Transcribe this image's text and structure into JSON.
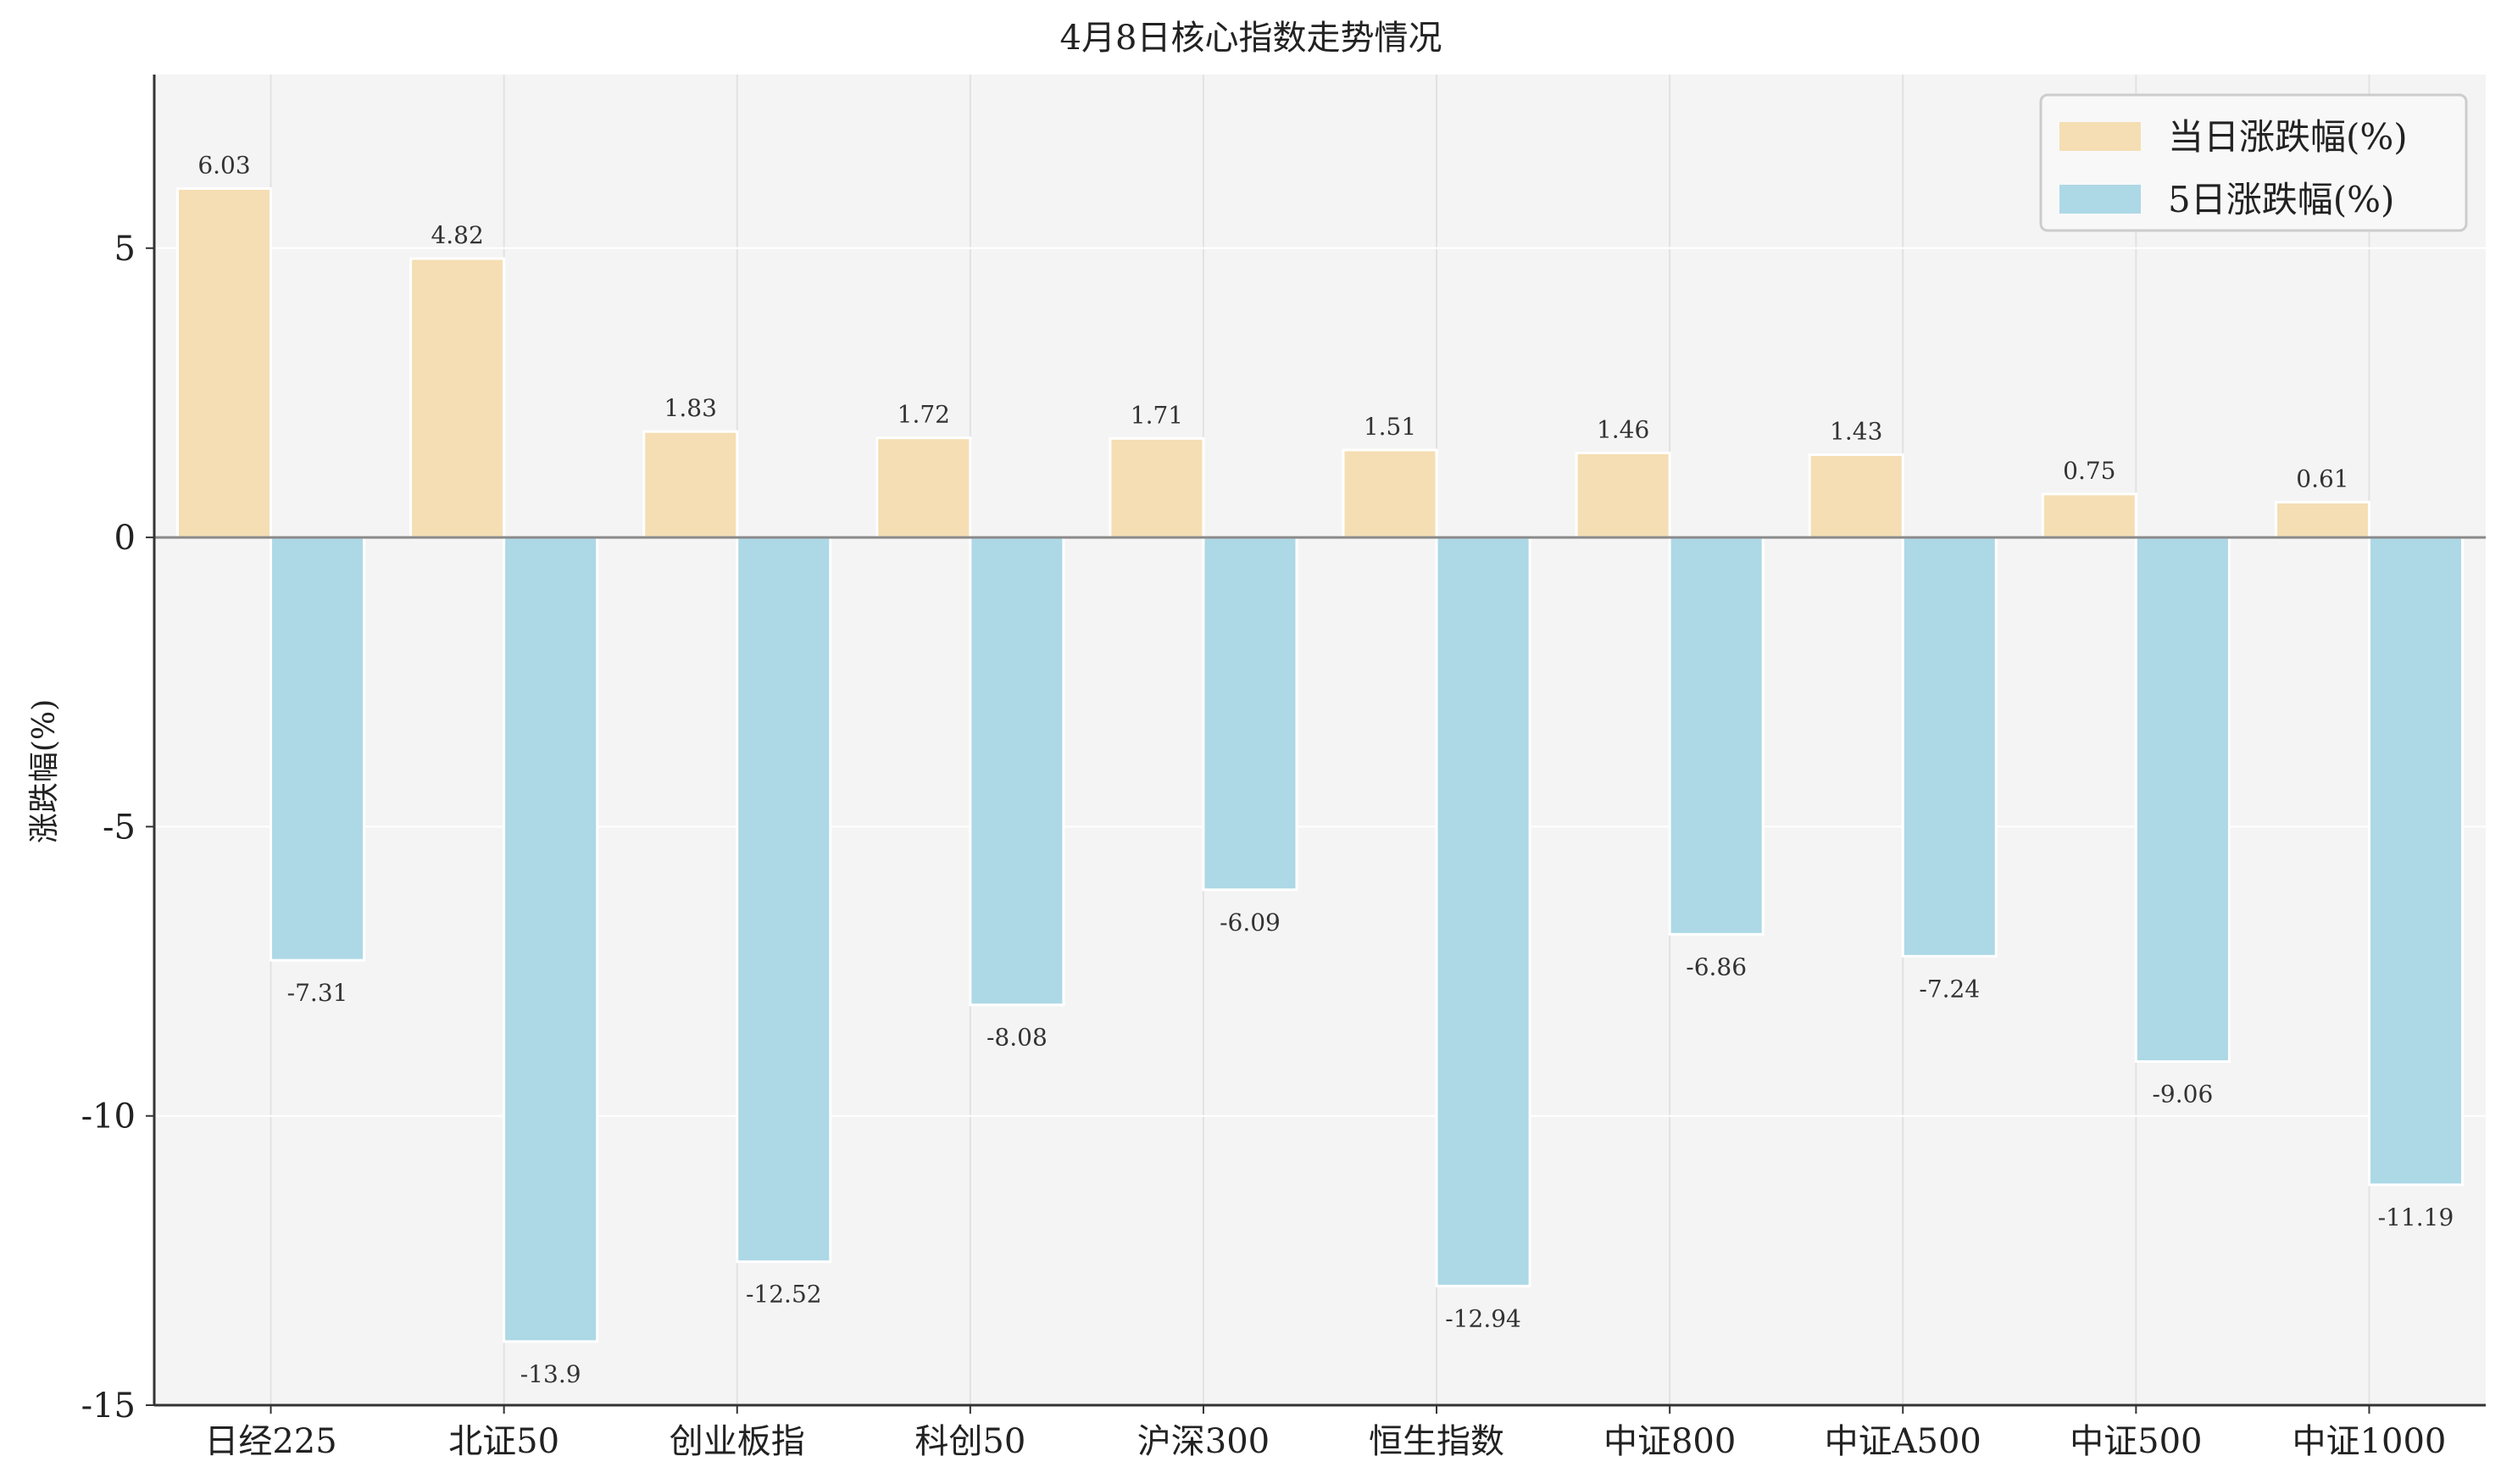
{
  "chart_data": {
    "type": "bar",
    "title": "4月8日核心指数走势情况",
    "ylabel": "涨跌幅(%)",
    "xlabel": "",
    "ylim": [
      -15,
      8
    ],
    "yticks": [
      5,
      0,
      -5,
      -10,
      -15
    ],
    "ytick_labels": [
      "5",
      "0",
      "-5",
      "-10",
      "-15"
    ],
    "grid": true,
    "legend_position": "top-right",
    "categories": [
      "日经225",
      "北证50",
      "创业板指",
      "科创50",
      "沪深300",
      "恒生指数",
      "中证800",
      "中证A500",
      "中证500",
      "中证1000"
    ],
    "series": [
      {
        "name": "当日涨跌幅(%)",
        "color": "#f5deb3",
        "values": [
          6.03,
          4.82,
          1.83,
          1.72,
          1.71,
          1.51,
          1.46,
          1.43,
          0.75,
          0.61
        ],
        "labels": [
          "6.03",
          "4.82",
          "1.83",
          "1.72",
          "1.71",
          "1.51",
          "1.46",
          "1.43",
          "0.75",
          "0.61"
        ]
      },
      {
        "name": "5日涨跌幅(%)",
        "color": "#add8e6",
        "values": [
          -7.31,
          -13.9,
          -12.52,
          -8.08,
          -6.09,
          -12.94,
          -6.86,
          -7.24,
          -9.06,
          -11.19
        ],
        "labels": [
          "-7.31",
          "-13.9",
          "-12.52",
          "-8.08",
          "-6.09",
          "-12.94",
          "-6.86",
          "-7.24",
          "-9.06",
          "-11.19"
        ]
      }
    ]
  }
}
